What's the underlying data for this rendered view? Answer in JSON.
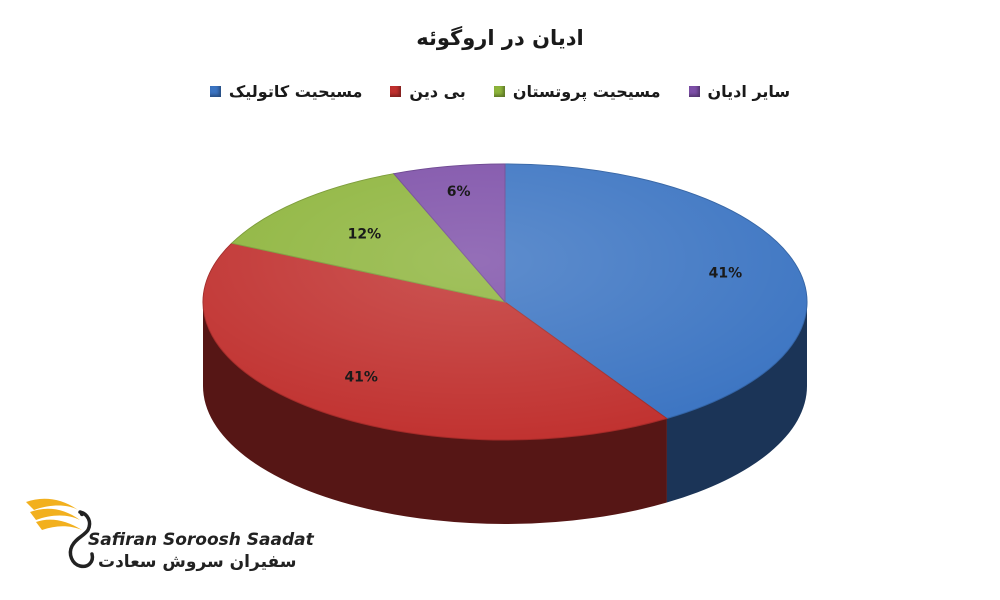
{
  "chart_data": {
    "type": "pie",
    "title": "ادیان در اروگوئه",
    "legend_position": "top",
    "series": [
      {
        "name": "مسیحیت کاتولیک",
        "value": 41,
        "label": "41%",
        "color": "#3b74c2"
      },
      {
        "name": "بی دین",
        "value": 41,
        "label": "41%",
        "color": "#c0302e"
      },
      {
        "name": "مسیحیت پروتستان",
        "value": 12,
        "label": "12%",
        "color": "#8db43b"
      },
      {
        "name": "سایر ادیان",
        "value": 6,
        "label": "6%",
        "color": "#7d4fa8"
      }
    ]
  },
  "logo": {
    "latin": "Safiran Soroosh Saadat",
    "farsi": "سفیران سروش سعادت"
  }
}
